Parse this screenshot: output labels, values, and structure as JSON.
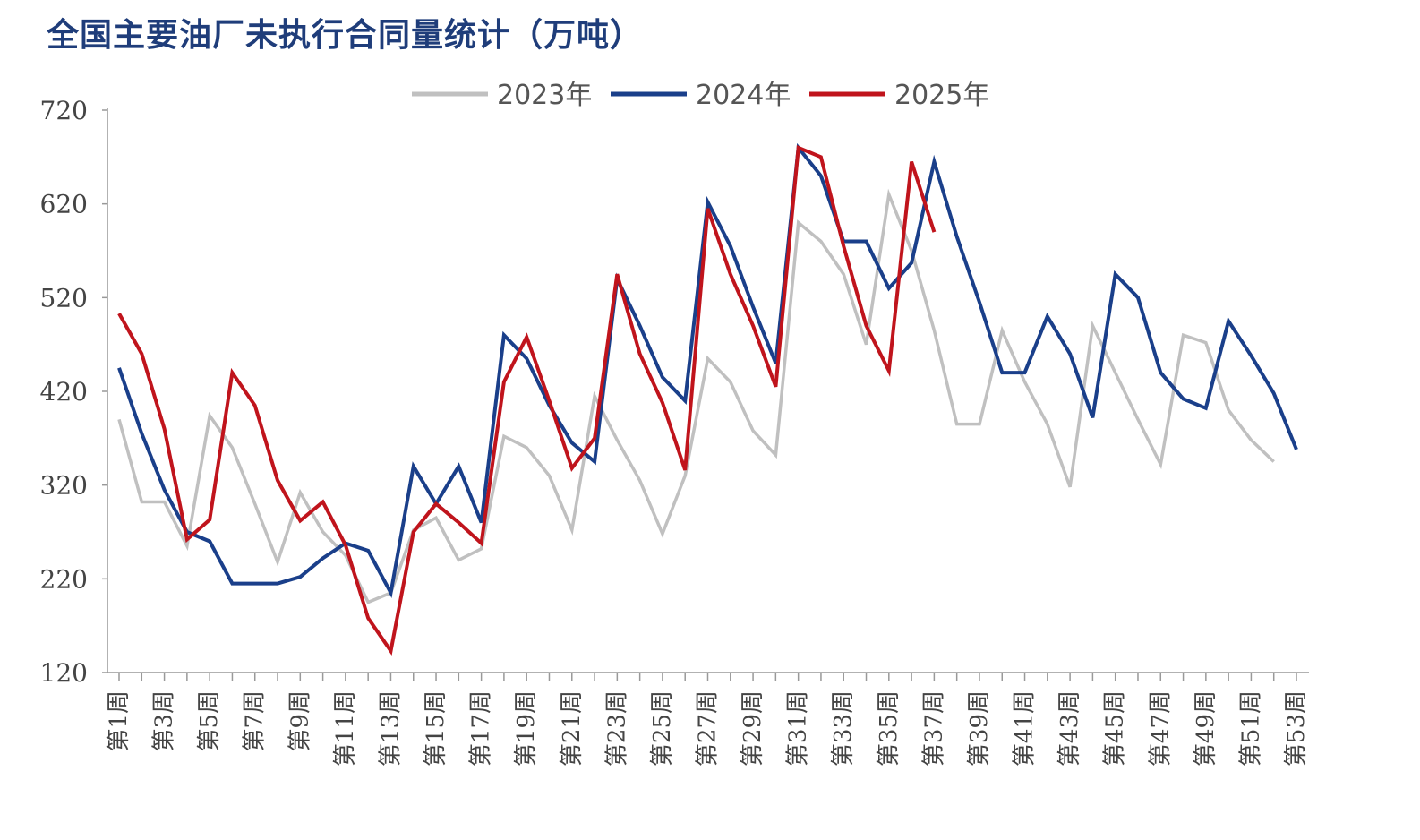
{
  "chart_data": {
    "type": "line",
    "title": "全国主要油厂未执行合同量统计（万吨）",
    "xlabel": "",
    "ylabel": "",
    "ylim": [
      120,
      720
    ],
    "yticks": [
      120,
      220,
      320,
      420,
      520,
      620,
      720
    ],
    "categories": [
      "第1周",
      "第2周",
      "第3周",
      "第4周",
      "第5周",
      "第6周",
      "第7周",
      "第8周",
      "第9周",
      "第10周",
      "第11周",
      "第12周",
      "第13周",
      "第14周",
      "第15周",
      "第16周",
      "第17周",
      "第18周",
      "第19周",
      "第20周",
      "第21周",
      "第22周",
      "第23周",
      "第24周",
      "第25周",
      "第26周",
      "第27周",
      "第28周",
      "第29周",
      "第30周",
      "第31周",
      "第32周",
      "第33周",
      "第34周",
      "第35周",
      "第36周",
      "第37周",
      "第38周",
      "第39周",
      "第40周",
      "第41周",
      "第42周",
      "第43周",
      "第44周",
      "第45周",
      "第46周",
      "第47周",
      "第48周",
      "第49周",
      "第50周",
      "第51周",
      "第52周",
      "第53周"
    ],
    "tick_labels": [
      "第1周",
      "第3周",
      "第5周",
      "第7周",
      "第9周",
      "第11周",
      "第13周",
      "第15周",
      "第17周",
      "第19周",
      "第21周",
      "第23周",
      "第25周",
      "第27周",
      "第29周",
      "第31周",
      "第33周",
      "第35周",
      "第37周",
      "第39周",
      "第41周",
      "第43周",
      "第45周",
      "第47周",
      "第49周",
      "第51周",
      "第53周"
    ],
    "legend_position": "top-center",
    "grid": false,
    "series": [
      {
        "name": "2023年",
        "color": "#c0c0c0",
        "values": [
          390,
          302,
          302,
          255,
          394,
          360,
          300,
          238,
          312,
          270,
          245,
          195,
          205,
          272,
          285,
          240,
          252,
          372,
          360,
          330,
          272,
          415,
          368,
          325,
          268,
          330,
          455,
          430,
          378,
          352,
          600,
          580,
          545,
          470,
          630,
          570,
          485,
          385,
          385,
          485,
          430,
          385,
          318,
          490,
          440,
          390,
          342,
          480,
          472,
          400,
          368,
          345,
          null
        ]
      },
      {
        "name": "2024年",
        "color": "#1a3f8a",
        "values": [
          445,
          375,
          315,
          270,
          260,
          215,
          215,
          215,
          222,
          242,
          258,
          250,
          205,
          340,
          300,
          340,
          280,
          480,
          455,
          405,
          365,
          345,
          540,
          490,
          435,
          410,
          622,
          575,
          510,
          450,
          680,
          650,
          580,
          580,
          530,
          557,
          665,
          585,
          515,
          440,
          440,
          500,
          460,
          392,
          545,
          520,
          440,
          412,
          402,
          495,
          458,
          418,
          358
        ]
      },
      {
        "name": "2025年",
        "color": "#c0141c",
        "values": [
          503,
          460,
          380,
          262,
          283,
          440,
          405,
          325,
          282,
          302,
          256,
          178,
          143,
          270,
          300,
          280,
          258,
          430,
          478,
          410,
          338,
          370,
          545,
          460,
          408,
          336,
          615,
          545,
          490,
          425,
          680,
          670,
          575,
          490,
          442,
          665,
          590,
          null,
          null,
          null,
          null,
          null,
          null,
          null,
          null,
          null,
          null,
          null,
          null,
          null,
          null,
          null,
          null
        ]
      }
    ]
  }
}
